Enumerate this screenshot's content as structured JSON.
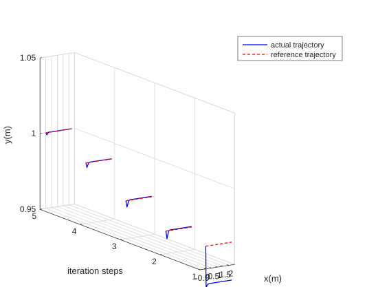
{
  "chart_data": {
    "type": "line",
    "projection": "3d",
    "title": "",
    "xlabel": "x(m)",
    "ylabel": "y(m)",
    "zlabel": "iteration steps",
    "xlim": [
      -0.5,
      2.5
    ],
    "ylim": [
      0.95,
      1.05
    ],
    "zlim": [
      1,
      5
    ],
    "x_ticks": [
      "-0.5",
      "0",
      "0.5",
      "1",
      "1.5",
      "2"
    ],
    "y_ticks": [
      "0.95",
      "1",
      "1.05"
    ],
    "z_ticks": [
      "1",
      "2",
      "3",
      "4",
      "5"
    ],
    "grid": true,
    "legend_position": "top-right",
    "colors": {
      "actual": "#0000ff",
      "reference": "#ff0000",
      "grid": "#d9d9d9",
      "axis": "#262626"
    },
    "series": [
      {
        "name": "actual trajectory",
        "style": "solid",
        "traces": [
          {
            "iteration": 1,
            "points": [
              [
                0,
                0.965
              ],
              [
                0.01,
                0.955
              ],
              [
                0.02,
                0.9452
              ],
              [
                0.03,
                0.938
              ],
              [
                0.05,
                0.9375
              ],
              [
                0.1,
                0.939
              ],
              [
                0.25,
                0.94
              ],
              [
                2.25,
                0.94
              ]
            ]
          },
          {
            "iteration": 2,
            "points": [
              [
                0,
                0.965
              ],
              [
                0.05,
                0.9632
              ],
              [
                0.1,
                0.9598
              ],
              [
                0.15,
                0.9613
              ],
              [
                0.25,
                0.9648
              ],
              [
                0.4,
                0.9653
              ],
              [
                2.25,
                0.9653
              ]
            ]
          },
          {
            "iteration": 3,
            "points": [
              [
                0,
                0.975
              ],
              [
                0.05,
                0.9733
              ],
              [
                0.1,
                0.9708
              ],
              [
                0.15,
                0.9718
              ],
              [
                0.25,
                0.9748
              ],
              [
                0.4,
                0.9753
              ],
              [
                2.25,
                0.9753
              ]
            ]
          },
          {
            "iteration": 4,
            "points": [
              [
                0,
                0.99
              ],
              [
                0.05,
                0.9888
              ],
              [
                0.1,
                0.9868
              ],
              [
                0.15,
                0.9878
              ],
              [
                0.25,
                0.9898
              ],
              [
                0.4,
                0.9902
              ],
              [
                2.25,
                0.9902
              ]
            ]
          },
          {
            "iteration": 5,
            "points": [
              [
                0,
                1.0
              ],
              [
                0.05,
                0.9993
              ],
              [
                0.1,
                0.9985
              ],
              [
                0.15,
                0.9992
              ],
              [
                0.25,
                1.0
              ],
              [
                2.25,
                1.0
              ]
            ]
          }
        ]
      },
      {
        "name": "reference trajectory",
        "style": "dashed",
        "traces": [
          {
            "iteration": 1,
            "points": [
              [
                0,
                0.965
              ],
              [
                2.25,
                0.965
              ]
            ]
          },
          {
            "iteration": 2,
            "points": [
              [
                0,
                0.965
              ],
              [
                2.25,
                0.965
              ]
            ]
          },
          {
            "iteration": 3,
            "points": [
              [
                0,
                0.975
              ],
              [
                2.25,
                0.975
              ]
            ]
          },
          {
            "iteration": 4,
            "points": [
              [
                0,
                0.99
              ],
              [
                2.25,
                0.99
              ]
            ]
          },
          {
            "iteration": 5,
            "points": [
              [
                0,
                1.0
              ],
              [
                2.25,
                1.0
              ]
            ]
          }
        ]
      }
    ]
  }
}
